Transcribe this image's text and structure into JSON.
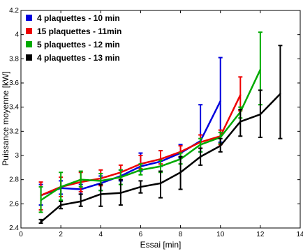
{
  "chart_data": {
    "type": "line",
    "xlabel": "Essai [min]",
    "ylabel": "Puissance moyenne [kW]",
    "xlim": [
      0,
      14
    ],
    "ylim": [
      2.4,
      4.2
    ],
    "xticks": [
      "0",
      "2",
      "4",
      "6",
      "8",
      "10",
      "12",
      "14"
    ],
    "yticks": [
      "2.4",
      "2.6",
      "2.8",
      "3",
      "3.2",
      "3.4",
      "3.6",
      "3.8",
      "4",
      "4.2"
    ],
    "grid": false,
    "legend_position": "top-left",
    "series": [
      {
        "name": "4 plaquettes - 10 min",
        "color": "#0000dd",
        "x": [
          1,
          2,
          3,
          4,
          5,
          6,
          7,
          8,
          9,
          10
        ],
        "y": [
          2.67,
          2.73,
          2.72,
          2.77,
          2.83,
          2.91,
          2.95,
          3.02,
          3.12,
          3.45
        ],
        "err_low": [
          2.59,
          2.68,
          2.68,
          2.71,
          2.79,
          2.87,
          2.91,
          2.98,
          3.03,
          3.11
        ],
        "err_high": [
          2.76,
          2.79,
          2.76,
          2.83,
          2.88,
          3.02,
          3.04,
          3.09,
          3.42,
          3.81
        ]
      },
      {
        "name": "15 plaquettes - 11min",
        "color": "#ee0000",
        "x": [
          1,
          2,
          3,
          4,
          5,
          6,
          7,
          8,
          9,
          10,
          11
        ],
        "y": [
          2.67,
          2.74,
          2.78,
          2.81,
          2.86,
          2.93,
          2.97,
          3.03,
          3.11,
          3.16,
          3.5
        ],
        "err_low": [
          2.55,
          2.66,
          2.7,
          2.75,
          2.8,
          2.89,
          2.93,
          2.99,
          3.06,
          3.09,
          3.37
        ],
        "err_high": [
          2.78,
          2.82,
          2.86,
          2.88,
          2.92,
          3.0,
          3.04,
          3.08,
          3.17,
          3.21,
          3.65
        ]
      },
      {
        "name": "5 plaquettes - 12 min",
        "color": "#00aa00",
        "x": [
          1,
          2,
          3,
          4,
          5,
          6,
          7,
          8,
          9,
          10,
          11,
          12
        ],
        "y": [
          2.63,
          2.74,
          2.8,
          2.79,
          2.82,
          2.88,
          2.91,
          2.97,
          3.09,
          3.15,
          3.36,
          3.71
        ],
        "err_low": [
          2.53,
          2.63,
          2.74,
          2.71,
          2.76,
          2.84,
          2.86,
          2.93,
          3.03,
          3.1,
          3.31,
          3.42
        ],
        "err_high": [
          2.74,
          2.86,
          2.87,
          2.85,
          2.88,
          2.93,
          2.96,
          3.02,
          3.14,
          3.19,
          3.4,
          4.02
        ]
      },
      {
        "name": "4 plaquettes - 13 min",
        "color": "#000000",
        "x": [
          1,
          2,
          3,
          4,
          5,
          6,
          7,
          8,
          9,
          10,
          11,
          12,
          13
        ],
        "y": [
          2.45,
          2.59,
          2.62,
          2.68,
          2.69,
          2.74,
          2.77,
          2.86,
          2.99,
          3.08,
          3.28,
          3.34,
          3.51
        ],
        "err_low": [
          2.44,
          2.56,
          2.58,
          2.58,
          2.59,
          2.69,
          2.65,
          2.72,
          2.92,
          3.03,
          3.16,
          3.15,
          3.14
        ],
        "err_high": [
          2.47,
          2.62,
          2.68,
          2.76,
          2.8,
          2.79,
          2.87,
          2.99,
          3.06,
          3.14,
          3.38,
          3.54,
          3.91
        ]
      }
    ]
  }
}
